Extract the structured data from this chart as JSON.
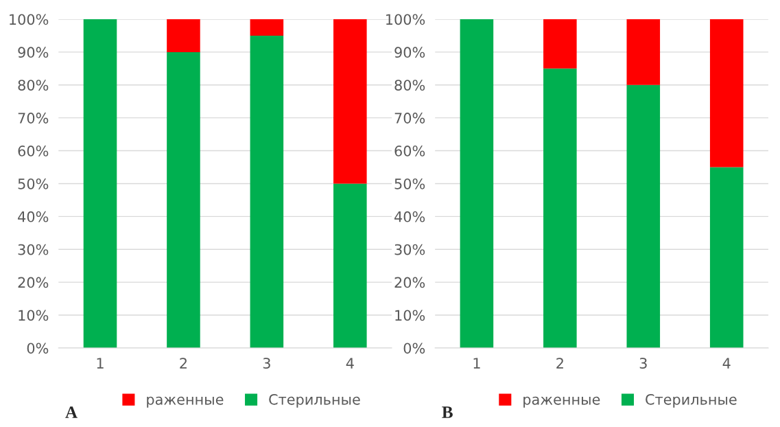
{
  "chart_data": [
    {
      "type": "bar",
      "stacked": true,
      "categories": [
        "1",
        "2",
        "3",
        "4"
      ],
      "series": [
        {
          "name": "Стерильные",
          "color": "#00b050",
          "values": [
            100,
            90,
            95,
            50
          ]
        },
        {
          "name": "раженные",
          "color": "#ff0000",
          "values": [
            null,
            10,
            5,
            50
          ]
        }
      ],
      "ylim": [
        0,
        100
      ],
      "yticks": [
        {
          "value": 0,
          "label": "0%"
        },
        {
          "value": 10,
          "label": "10%"
        },
        {
          "value": 20,
          "label": "20%"
        },
        {
          "value": 30,
          "label": "30%"
        },
        {
          "value": 40,
          "label": "40%"
        },
        {
          "value": 50,
          "label": "50%"
        },
        {
          "value": 60,
          "label": "60%"
        },
        {
          "value": 70,
          "label": "70%"
        },
        {
          "value": 80,
          "label": "80%"
        },
        {
          "value": 90,
          "label": "90%"
        },
        {
          "value": 100,
          "label": "100%"
        }
      ],
      "grid": "y",
      "legend": "bottom",
      "annotations": [
        "A"
      ]
    },
    {
      "type": "bar",
      "stacked": true,
      "categories": [
        "1",
        "2",
        "3",
        "4"
      ],
      "series": [
        {
          "name": "Стерильные",
          "color": "#00b050",
          "values": [
            100,
            85,
            80,
            55
          ]
        },
        {
          "name": "раженные",
          "color": "#ff0000",
          "values": [
            null,
            15,
            20,
            45
          ]
        }
      ],
      "ylim": [
        0,
        100
      ],
      "yticks": [
        {
          "value": 0,
          "label": "0%"
        },
        {
          "value": 10,
          "label": "10%"
        },
        {
          "value": 20,
          "label": "20%"
        },
        {
          "value": 30,
          "label": "30%"
        },
        {
          "value": 40,
          "label": "40%"
        },
        {
          "value": 50,
          "label": "50%"
        },
        {
          "value": 60,
          "label": "60%"
        },
        {
          "value": 70,
          "label": "70%"
        },
        {
          "value": 80,
          "label": "80%"
        },
        {
          "value": 90,
          "label": "90%"
        },
        {
          "value": 100,
          "label": "100%"
        }
      ],
      "grid": "y",
      "legend": "bottom",
      "annotations": [
        "B"
      ]
    }
  ]
}
